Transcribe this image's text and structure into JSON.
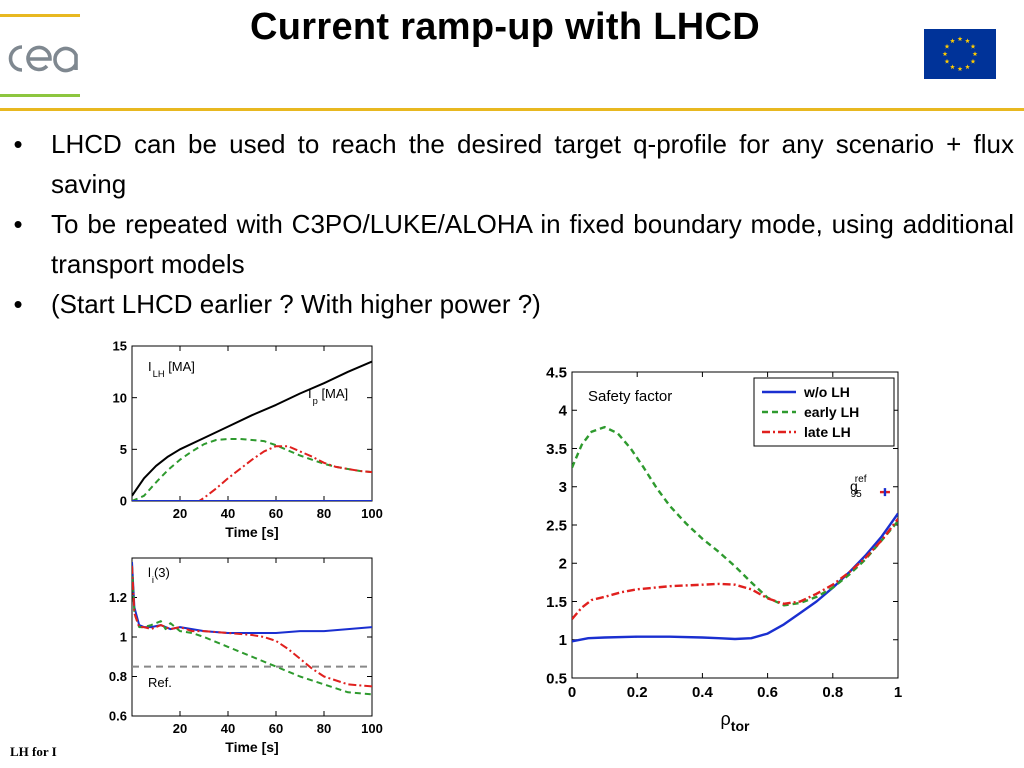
{
  "header": {
    "title": "Current ramp-up with LHCD",
    "logo_text": "cea"
  },
  "bullets": [
    "LHCD can be used to reach the desired target q-profile for any scenario + flux saving",
    "To be repeated with C3PO/LUKE/ALOHA in fixed boundary mode, using additional transport models",
    "(Start LHCD earlier ? With higher power ?)"
  ],
  "footer": {
    "text": "LH for I"
  },
  "colors": {
    "accent_rule": "#e8b820",
    "eu_blue": "#003399",
    "eu_star": "#ffcc00"
  },
  "chart_data": [
    {
      "type": "line",
      "id": "current",
      "xlabel": "Time [s]",
      "xlim": [
        0,
        100
      ],
      "ylim": [
        0,
        15
      ],
      "xticks": [
        20,
        40,
        60,
        80,
        100
      ],
      "yticks": [
        0,
        5,
        10,
        15
      ],
      "annotations": [
        {
          "main": "I",
          "sub": "LH",
          "tail": " [MA]"
        },
        {
          "main": "I",
          "sub": "p",
          "tail": " [MA]"
        }
      ],
      "series": [
        {
          "color": "#000000",
          "dash": "",
          "x": [
            0,
            5,
            10,
            15,
            20,
            30,
            40,
            50,
            60,
            70,
            80,
            90,
            100
          ],
          "y": [
            0.5,
            2.2,
            3.4,
            4.3,
            5.0,
            6.1,
            7.2,
            8.3,
            9.3,
            10.4,
            11.4,
            12.5,
            13.5
          ]
        },
        {
          "color": "#2e9a2e",
          "dash": "6 4",
          "x": [
            0,
            5,
            10,
            15,
            20,
            25,
            30,
            35,
            40,
            45,
            50,
            55,
            60,
            65,
            70,
            75,
            80,
            85,
            90,
            95,
            100
          ],
          "y": [
            0,
            0.5,
            1.8,
            3.0,
            4.0,
            4.8,
            5.5,
            5.9,
            6.0,
            6.0,
            5.9,
            5.8,
            5.4,
            4.9,
            4.4,
            4.0,
            3.6,
            3.3,
            3.1,
            2.9,
            2.8
          ]
        },
        {
          "color": "#e0201e",
          "dash": "8 3 2 3",
          "x": [
            0,
            28,
            30,
            35,
            40,
            45,
            50,
            55,
            60,
            65,
            70,
            75,
            80,
            85,
            90,
            95,
            100
          ],
          "y": [
            0,
            0,
            0.3,
            1.2,
            2.2,
            3.1,
            4.0,
            4.8,
            5.3,
            5.3,
            4.8,
            4.3,
            3.7,
            3.3,
            3.1,
            2.9,
            2.8
          ]
        },
        {
          "color": "#1a2fd0",
          "dash": "",
          "x": [
            0,
            100
          ],
          "y": [
            0,
            0
          ]
        }
      ]
    },
    {
      "type": "line",
      "id": "inductance",
      "xlabel": "Time [s]",
      "xlim": [
        0,
        100
      ],
      "ylim": [
        0.6,
        1.4
      ],
      "xticks": [
        20,
        40,
        60,
        80,
        100
      ],
      "yticks": [
        0.6,
        0.8,
        1,
        1.2
      ],
      "annotations": [
        {
          "main": "l",
          "sub": "i",
          "tail": "(3)"
        },
        {
          "main": "Ref.",
          "sub": "",
          "tail": ""
        }
      ],
      "series": [
        {
          "color": "#1a2fd0",
          "dash": "",
          "x": [
            0,
            1,
            3,
            5,
            8,
            12,
            16,
            20,
            25,
            30,
            40,
            50,
            60,
            70,
            80,
            90,
            100
          ],
          "y": [
            1.38,
            1.15,
            1.06,
            1.05,
            1.05,
            1.06,
            1.04,
            1.05,
            1.04,
            1.03,
            1.02,
            1.02,
            1.02,
            1.03,
            1.03,
            1.04,
            1.05
          ]
        },
        {
          "color": "#2e9a2e",
          "dash": "6 4",
          "x": [
            0,
            1,
            3,
            5,
            8,
            12,
            14,
            16,
            20,
            25,
            30,
            40,
            50,
            60,
            70,
            80,
            90,
            100
          ],
          "y": [
            1.36,
            1.12,
            1.05,
            1.05,
            1.06,
            1.08,
            1.04,
            1.07,
            1.03,
            1.02,
            1.0,
            0.95,
            0.9,
            0.85,
            0.8,
            0.76,
            0.72,
            0.71
          ]
        },
        {
          "color": "#e0201e",
          "dash": "8 3 2 3",
          "x": [
            0,
            1,
            3,
            5,
            8,
            12,
            16,
            20,
            25,
            30,
            40,
            50,
            55,
            60,
            65,
            70,
            75,
            80,
            90,
            100
          ],
          "y": [
            1.36,
            1.12,
            1.05,
            1.05,
            1.04,
            1.06,
            1.04,
            1.05,
            1.03,
            1.03,
            1.02,
            1.01,
            1.0,
            0.98,
            0.94,
            0.89,
            0.84,
            0.8,
            0.76,
            0.75
          ]
        },
        {
          "color": "#888888",
          "dash": "7 5",
          "x": [
            0,
            100
          ],
          "y": [
            0.85,
            0.85
          ]
        }
      ]
    },
    {
      "type": "line",
      "id": "safety-factor",
      "title": "Safety factor",
      "xlabel": {
        "main": "ρ",
        "sub": "tor"
      },
      "xlim": [
        0,
        1
      ],
      "ylim": [
        0.5,
        4.5
      ],
      "xticks": [
        0,
        0.2,
        0.4,
        0.6,
        0.8,
        1
      ],
      "yticks": [
        0.5,
        1,
        1.5,
        2,
        2.5,
        3,
        3.5,
        4,
        4.5
      ],
      "legend": {
        "position": "top-right"
      },
      "annotations": [
        {
          "main": "q",
          "sub": "95",
          "sup": "ref"
        }
      ],
      "marker": {
        "x": 0.96,
        "y": 2.93
      },
      "series": [
        {
          "name": "w/o LH",
          "color": "#1a2fd0",
          "dash": "",
          "x": [
            0,
            0.05,
            0.1,
            0.2,
            0.3,
            0.4,
            0.45,
            0.5,
            0.55,
            0.6,
            0.65,
            0.7,
            0.75,
            0.8,
            0.85,
            0.9,
            0.95,
            1.0
          ],
          "y": [
            0.98,
            1.02,
            1.03,
            1.04,
            1.04,
            1.03,
            1.02,
            1.01,
            1.02,
            1.08,
            1.2,
            1.35,
            1.5,
            1.68,
            1.88,
            2.1,
            2.35,
            2.65
          ]
        },
        {
          "name": "early LH",
          "color": "#2e9a2e",
          "dash": "6 4",
          "x": [
            0,
            0.03,
            0.06,
            0.1,
            0.14,
            0.18,
            0.22,
            0.26,
            0.3,
            0.35,
            0.4,
            0.45,
            0.5,
            0.55,
            0.6,
            0.65,
            0.7,
            0.75,
            0.8,
            0.85,
            0.9,
            0.95,
            1.0
          ],
          "y": [
            3.25,
            3.55,
            3.72,
            3.78,
            3.7,
            3.5,
            3.25,
            2.98,
            2.75,
            2.52,
            2.32,
            2.15,
            1.96,
            1.75,
            1.55,
            1.45,
            1.48,
            1.56,
            1.68,
            1.85,
            2.05,
            2.3,
            2.55
          ]
        },
        {
          "name": "late LH",
          "color": "#e0201e",
          "dash": "8 3 2 3",
          "x": [
            0,
            0.03,
            0.06,
            0.1,
            0.15,
            0.2,
            0.3,
            0.4,
            0.45,
            0.5,
            0.55,
            0.6,
            0.65,
            0.7,
            0.75,
            0.8,
            0.85,
            0.9,
            0.95,
            1.0
          ],
          "y": [
            1.27,
            1.42,
            1.52,
            1.56,
            1.62,
            1.66,
            1.7,
            1.72,
            1.73,
            1.72,
            1.66,
            1.54,
            1.47,
            1.5,
            1.6,
            1.72,
            1.88,
            2.07,
            2.3,
            2.58
          ]
        }
      ]
    }
  ]
}
